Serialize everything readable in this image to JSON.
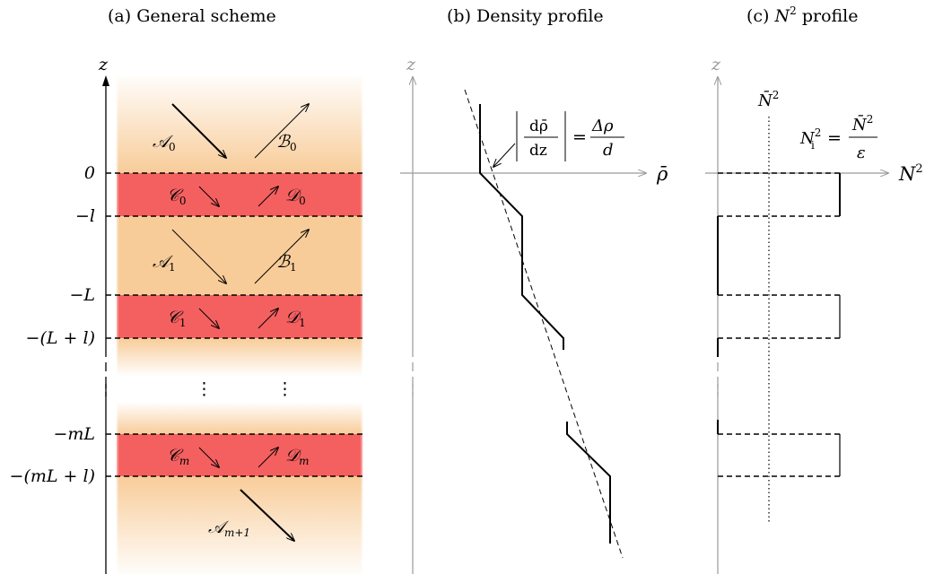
{
  "panels": {
    "a": {
      "title_prefix": "(a) ",
      "title": "General scheme",
      "axis": "z"
    },
    "b": {
      "title_prefix": "(b) ",
      "title": "Density profile",
      "axis": "z",
      "xaxis": "ρ̄",
      "slope_label": {
        "num": "dρ̄",
        "den": "dz",
        "eq": "=",
        "rhs_num": "Δρ",
        "rhs_den": "d"
      }
    },
    "c": {
      "title_prefix": "(c) ",
      "title_var": "N",
      "title_sup": "2",
      "title_suffix": " profile",
      "axis": "z",
      "xaxis": "N",
      "xaxis_sup": "2",
      "nbar": "N̄",
      "nbar_sup": "2",
      "ni_label": {
        "lhs": "N",
        "lhs_sup": "2",
        "lhs_sub": "i",
        "eq": "=",
        "num": "N̄",
        "num_sup": "2",
        "den": "ε"
      }
    }
  },
  "ticks": [
    "0",
    "−l",
    "−L",
    "−(L + l)",
    "−mL",
    "−(mL + l)"
  ],
  "dots": "⋮",
  "layers": {
    "a0": "𝒜",
    "a0_sub": "0",
    "b0": "ℬ",
    "b0_sub": "0",
    "c0": "𝒞",
    "c0_sub": "0",
    "d0": "𝒟",
    "d0_sub": "0",
    "a1": "𝒜",
    "a1_sub": "1",
    "b1": "ℬ",
    "b1_sub": "1",
    "c1": "𝒞",
    "c1_sub": "1",
    "d1": "𝒟",
    "d1_sub": "1",
    "cm": "𝒞",
    "cm_sub": "m",
    "dm": "𝒟",
    "dm_sub": "m",
    "am1": "𝒜",
    "am1_sub": "m+1"
  },
  "colors": {
    "orange": "#f8cc99",
    "red": "#f46060",
    "gray": "#9a9a9a"
  }
}
